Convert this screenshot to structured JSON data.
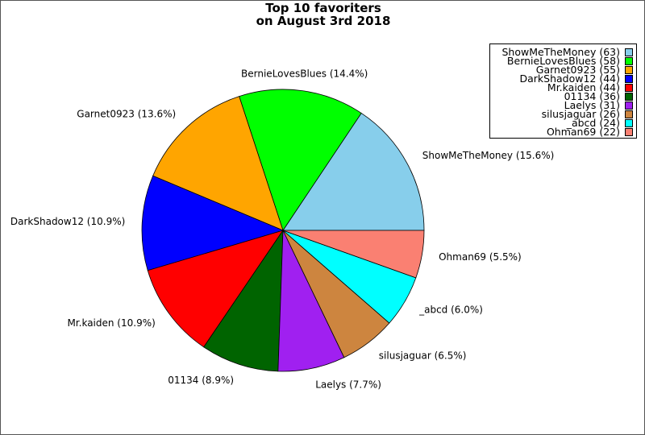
{
  "chart_data": {
    "type": "pie",
    "title_lines": [
      "Top 10 favoriters",
      "on August 3rd 2018"
    ],
    "legend_position": "top-right",
    "slices": [
      {
        "name": "ShowMeTheMoney",
        "value": 63,
        "percent_label": "ShowMeTheMoney (15.6%)",
        "legend_label": "ShowMeTheMoney (63)",
        "color": "#87CEEB"
      },
      {
        "name": "BernieLovesBlues",
        "value": 58,
        "percent_label": "BernieLovesBlues (14.4%)",
        "legend_label": "BernieLovesBlues (58)",
        "color": "#00FF00"
      },
      {
        "name": "Garnet0923",
        "value": 55,
        "percent_label": "Garnet0923 (13.6%)",
        "legend_label": "Garnet0923 (55)",
        "color": "#FFA500"
      },
      {
        "name": "DarkShadow12",
        "value": 44,
        "percent_label": "DarkShadow12 (10.9%)",
        "legend_label": "DarkShadow12 (44)",
        "color": "#0000FF"
      },
      {
        "name": "Mr.kaiden",
        "value": 44,
        "percent_label": "Mr.kaiden (10.9%)",
        "legend_label": "Mr.kaiden (44)",
        "color": "#FF0000"
      },
      {
        "name": "01134",
        "value": 36,
        "percent_label": "01134 (8.9%)",
        "legend_label": "01134 (36)",
        "color": "#006400"
      },
      {
        "name": "Laelys",
        "value": 31,
        "percent_label": "Laelys (7.7%)",
        "legend_label": "Laelys (31)",
        "color": "#A020F0"
      },
      {
        "name": "silusjaguar",
        "value": 26,
        "percent_label": "silusjaguar (6.5%)",
        "legend_label": "silusjaguar (26)",
        "color": "#CD853F"
      },
      {
        "name": "_abcd",
        "value": 24,
        "percent_label": "_abcd (6.0%)",
        "legend_label": "_abcd (24)",
        "color": "#00FFFF"
      },
      {
        "name": "Ohman69",
        "value": 22,
        "percent_label": "Ohman69 (5.5%)",
        "legend_label": "Ohman69 (22)",
        "color": "#FA8072"
      }
    ]
  }
}
